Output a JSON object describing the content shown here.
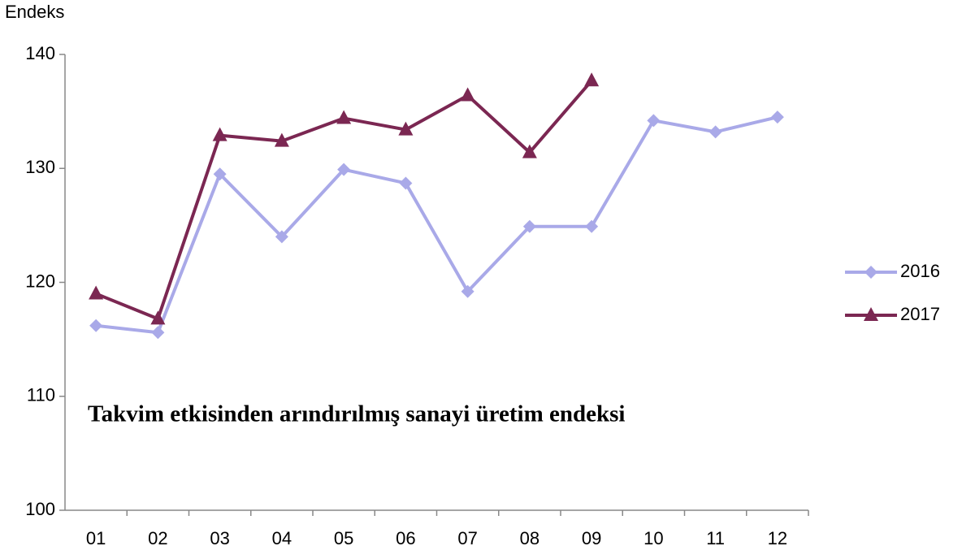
{
  "chart_data": {
    "type": "line",
    "y_label": "Endeks",
    "annotation": "Takvim etkisinden arındırılmış sanayi üretim endeksi",
    "categories": [
      "01",
      "02",
      "03",
      "04",
      "05",
      "06",
      "07",
      "08",
      "09",
      "10",
      "11",
      "12"
    ],
    "series": [
      {
        "name": "2016",
        "color": "#a9a9e8",
        "marker": "diamond",
        "values": [
          116.2,
          115.6,
          129.5,
          124.0,
          129.9,
          128.7,
          119.2,
          124.9,
          124.9,
          134.2,
          133.2,
          134.5
        ]
      },
      {
        "name": "2017",
        "color": "#7b2752",
        "marker": "triangle",
        "values": [
          119.0,
          116.8,
          132.9,
          132.4,
          134.4,
          133.4,
          136.4,
          131.4,
          137.7,
          null,
          null,
          null
        ]
      }
    ],
    "ylim": [
      100,
      140
    ],
    "yticks": [
      100,
      110,
      120,
      130,
      140
    ],
    "grid": false,
    "legend": "right"
  }
}
